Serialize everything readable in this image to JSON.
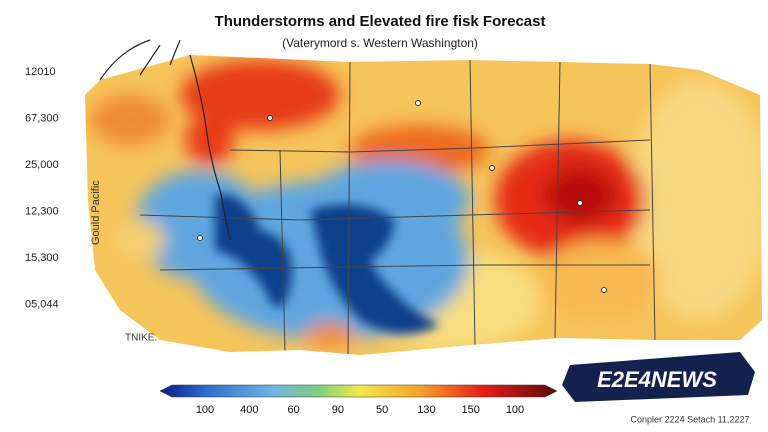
{
  "header": {
    "title": "Thunderstorms and Elevated fire fisk Forecast",
    "subtitle": "(Vaterymord s. Western Washington)"
  },
  "side_labels": [
    "12010",
    "67,300",
    "25,000",
    "12,300",
    "15,300",
    "05,044"
  ],
  "map_labels": {
    "vertical": "Gould Pacific",
    "corner": "TNIKE."
  },
  "legend": {
    "labels": [
      "100",
      "400",
      "60",
      "90",
      "50",
      "130",
      "150",
      "100"
    ]
  },
  "logo": "E2E4NEWS",
  "footer": "Conpler 2224 Setach 11,2227"
}
